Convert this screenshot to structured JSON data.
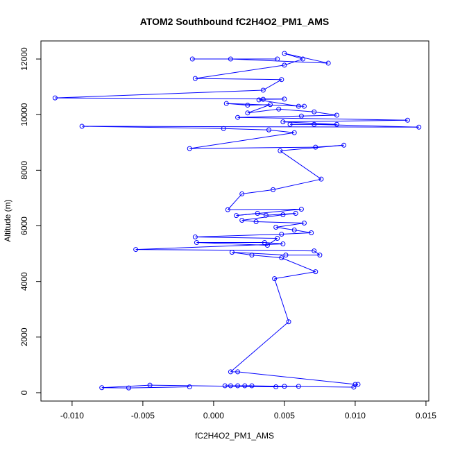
{
  "chart_data": {
    "type": "line",
    "title": "ATOM2 Southbound fC2H4O2_PM1_AMS",
    "xlabel": "fC2H4O2_PM1_AMS",
    "ylabel": "Altitude (m)",
    "xlim": [
      -0.0122,
      0.0152
    ],
    "ylim": [
      -300,
      12650
    ],
    "xticks": [
      -0.01,
      -0.005,
      0.0,
      0.005,
      0.01,
      0.015
    ],
    "xtick_labels": [
      "-0.010",
      "-0.005",
      "0.000",
      "0.005",
      "0.010",
      "0.015"
    ],
    "yticks": [
      0,
      2000,
      4000,
      6000,
      8000,
      10000,
      12000
    ],
    "ytick_labels": [
      "0",
      "2000",
      "4000",
      "6000",
      "8000",
      "10000",
      "12000"
    ],
    "grid": false,
    "series": [
      {
        "color": "#0000ff",
        "marker": "open-circle",
        "points": [
          [
            0.0045,
            12000
          ],
          [
            -0.0015,
            12000
          ],
          [
            0.0012,
            12000
          ],
          [
            0.0081,
            11850
          ],
          [
            0.005,
            12200
          ],
          [
            0.0063,
            12000
          ],
          [
            0.005,
            11780
          ],
          [
            -0.0013,
            11300
          ],
          [
            0.0048,
            11260
          ],
          [
            0.0035,
            10880
          ],
          [
            -0.0112,
            10600
          ],
          [
            0.005,
            10560
          ],
          [
            0.0035,
            10550
          ],
          [
            0.0032,
            10530
          ],
          [
            0.006,
            10300
          ],
          [
            0.0064,
            10300
          ],
          [
            0.0009,
            10400
          ],
          [
            0.0024,
            10340
          ],
          [
            0.004,
            10360
          ],
          [
            0.0024,
            10060
          ],
          [
            0.0046,
            10200
          ],
          [
            0.0071,
            10100
          ],
          [
            0.0087,
            9980
          ],
          [
            0.0062,
            9950
          ],
          [
            0.0017,
            9900
          ],
          [
            0.0137,
            9800
          ],
          [
            0.0049,
            9740
          ],
          [
            0.0087,
            9650
          ],
          [
            0.0054,
            9650
          ],
          [
            0.0071,
            9650
          ],
          [
            0.0145,
            9550
          ],
          [
            -0.0093,
            9580
          ],
          [
            0.0007,
            9500
          ],
          [
            0.0039,
            9450
          ],
          [
            0.0057,
            9350
          ],
          [
            -0.0017,
            8780
          ],
          [
            0.0072,
            8830
          ],
          [
            0.0092,
            8900
          ],
          [
            0.0047,
            8700
          ],
          [
            0.0076,
            7680
          ],
          [
            0.0042,
            7300
          ],
          [
            0.002,
            7150
          ],
          [
            0.001,
            6580
          ],
          [
            0.0062,
            6600
          ],
          [
            0.0016,
            6370
          ],
          [
            0.0031,
            6450
          ],
          [
            0.0037,
            6380
          ],
          [
            0.0058,
            6450
          ],
          [
            0.0049,
            6400
          ],
          [
            0.002,
            6200
          ],
          [
            0.003,
            6150
          ],
          [
            0.0064,
            6100
          ],
          [
            0.0044,
            5950
          ],
          [
            0.0057,
            5850
          ],
          [
            0.0069,
            5750
          ],
          [
            0.0048,
            5700
          ],
          [
            -0.0013,
            5600
          ],
          [
            0.0045,
            5550
          ],
          [
            0.0038,
            5300
          ],
          [
            -0.0012,
            5400
          ],
          [
            0.0036,
            5400
          ],
          [
            0.0049,
            5350
          ],
          [
            -0.0055,
            5150
          ],
          [
            0.0071,
            5100
          ],
          [
            0.0075,
            4950
          ],
          [
            0.0051,
            4950
          ],
          [
            0.0013,
            5050
          ],
          [
            0.0027,
            4950
          ],
          [
            0.0048,
            4850
          ],
          [
            0.0072,
            4350
          ],
          [
            0.0043,
            4100
          ],
          [
            0.0053,
            2550
          ],
          [
            0.0012,
            750
          ],
          [
            0.0017,
            750
          ],
          [
            0.01,
            300
          ],
          [
            0.0102,
            300
          ],
          [
            0.0099,
            200
          ],
          [
            0.0012,
            250
          ],
          [
            0.0027,
            250
          ],
          [
            0.0022,
            250
          ],
          [
            0.0008,
            250
          ],
          [
            0.0017,
            250
          ],
          [
            0.005,
            230
          ],
          [
            0.006,
            230
          ],
          [
            0.0044,
            210
          ],
          [
            -0.0045,
            270
          ],
          [
            -0.0079,
            180
          ],
          [
            -0.006,
            170
          ],
          [
            -0.0017,
            210
          ]
        ]
      }
    ]
  }
}
